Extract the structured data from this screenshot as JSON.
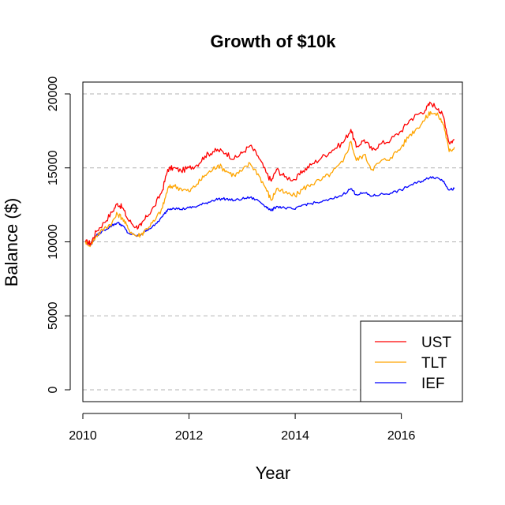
{
  "chart_data": {
    "type": "line",
    "title": "Growth of $10k",
    "xlabel": "Year",
    "ylabel": "Balance ($)",
    "xlim": [
      2010.0,
      2017.15
    ],
    "ylim": [
      -800,
      20800
    ],
    "x_ticks": [
      2010,
      2012,
      2014,
      2016
    ],
    "x_tick_labels": [
      "2010",
      "2012",
      "2014",
      "2016"
    ],
    "y_ticks": [
      0,
      5000,
      10000,
      15000,
      20000
    ],
    "y_tick_labels": [
      "0",
      "5000",
      "10000",
      "15000",
      "20000"
    ],
    "grid": "horizontal dashed",
    "legend_position": "bottom-right",
    "series": [
      {
        "name": "UST",
        "color": "#ff0000",
        "x": [
          2010.05,
          2010.15,
          2010.25,
          2010.4,
          2010.55,
          2010.65,
          2010.75,
          2010.85,
          2011.0,
          2011.1,
          2011.2,
          2011.35,
          2011.5,
          2011.6,
          2011.7,
          2011.85,
          2012.0,
          2012.15,
          2012.3,
          2012.45,
          2012.55,
          2012.7,
          2012.85,
          2013.0,
          2013.15,
          2013.3,
          2013.45,
          2013.55,
          2013.65,
          2013.8,
          2014.0,
          2014.15,
          2014.3,
          2014.5,
          2014.7,
          2014.9,
          2015.05,
          2015.15,
          2015.3,
          2015.45,
          2015.6,
          2015.8,
          2016.0,
          2016.15,
          2016.3,
          2016.45,
          2016.55,
          2016.7,
          2016.8,
          2016.9,
          2017.0
        ],
        "values": [
          10000,
          9900,
          10700,
          11300,
          12000,
          12600,
          12300,
          11500,
          11000,
          11100,
          11700,
          12400,
          13500,
          14900,
          15000,
          14800,
          15000,
          15200,
          15800,
          16100,
          16200,
          16000,
          15600,
          16000,
          16500,
          15800,
          14700,
          14100,
          14900,
          14400,
          14200,
          14800,
          15200,
          15700,
          16200,
          16700,
          17600,
          16400,
          16900,
          16200,
          16600,
          16900,
          17500,
          18200,
          18600,
          18900,
          19400,
          19000,
          18400,
          16700,
          16900
        ]
      },
      {
        "name": "TLT",
        "color": "#ffa500",
        "x": [
          2010.05,
          2010.15,
          2010.25,
          2010.4,
          2010.55,
          2010.65,
          2010.75,
          2010.85,
          2011.0,
          2011.1,
          2011.2,
          2011.35,
          2011.5,
          2011.6,
          2011.7,
          2011.85,
          2012.0,
          2012.15,
          2012.3,
          2012.45,
          2012.55,
          2012.7,
          2012.85,
          2013.0,
          2013.15,
          2013.3,
          2013.45,
          2013.55,
          2013.65,
          2013.8,
          2014.0,
          2014.15,
          2014.3,
          2014.5,
          2014.7,
          2014.9,
          2015.05,
          2015.15,
          2015.3,
          2015.45,
          2015.6,
          2015.8,
          2016.0,
          2016.15,
          2016.3,
          2016.45,
          2016.55,
          2016.7,
          2016.8,
          2016.9,
          2017.0
        ],
        "values": [
          10000,
          9800,
          10400,
          10900,
          11300,
          11900,
          11600,
          10900,
          10400,
          10500,
          10900,
          11400,
          12300,
          13600,
          13800,
          13600,
          13400,
          13900,
          14500,
          14900,
          15200,
          14800,
          14500,
          14800,
          15300,
          14600,
          13600,
          12800,
          13600,
          13300,
          13100,
          13600,
          13900,
          14200,
          14700,
          15400,
          16800,
          15500,
          15900,
          14900,
          15400,
          15700,
          16400,
          17200,
          17700,
          18300,
          18800,
          18500,
          17900,
          16100,
          16400
        ]
      },
      {
        "name": "IEF",
        "color": "#0000ff",
        "x": [
          2010.05,
          2010.15,
          2010.25,
          2010.4,
          2010.55,
          2010.65,
          2010.75,
          2010.85,
          2011.0,
          2011.1,
          2011.2,
          2011.35,
          2011.5,
          2011.6,
          2011.7,
          2011.85,
          2012.0,
          2012.15,
          2012.3,
          2012.45,
          2012.55,
          2012.7,
          2012.85,
          2013.0,
          2013.15,
          2013.3,
          2013.45,
          2013.55,
          2013.65,
          2013.8,
          2014.0,
          2014.15,
          2014.3,
          2014.5,
          2014.7,
          2014.9,
          2015.05,
          2015.15,
          2015.3,
          2015.45,
          2015.6,
          2015.8,
          2016.0,
          2016.15,
          2016.3,
          2016.45,
          2016.55,
          2016.7,
          2016.8,
          2016.9,
          2017.0
        ],
        "values": [
          10000,
          9800,
          10400,
          10800,
          11100,
          11300,
          11100,
          10600,
          10400,
          10500,
          10800,
          11100,
          11700,
          12200,
          12300,
          12200,
          12300,
          12400,
          12600,
          12800,
          12900,
          12900,
          12800,
          12900,
          13000,
          12800,
          12400,
          12100,
          12400,
          12300,
          12200,
          12500,
          12600,
          12700,
          12900,
          13200,
          13600,
          13200,
          13300,
          13100,
          13200,
          13300,
          13500,
          13800,
          14000,
          14200,
          14400,
          14300,
          14100,
          13500,
          13600
        ]
      }
    ]
  }
}
